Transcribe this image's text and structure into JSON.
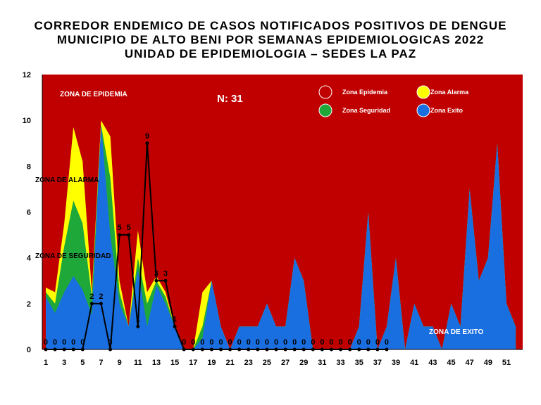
{
  "titles": [
    "CORREDOR ENDEMICO DE CASOS NOTIFICADOS POSITIVOS DE DENGUE",
    "MUNICIPIO DE ALTO BENI POR SEMANAS EPIDEMIOLOGICAS 2022",
    "UNIDAD DE EPIDEMIOLOGIA – SEDES LA PAZ"
  ],
  "annotations": {
    "n": "N: 31",
    "epidemia": "ZONA DE EPIDEMIA",
    "alarma": "ZONA DE ALARMA",
    "seguridad": "ZONA DE  SEGURIDAD",
    "exito": "ZONA DE  EXITO"
  },
  "colors": {
    "epidemia": "#c00000",
    "alarma": "#ffff00",
    "seguridad": "#1fa83a",
    "exito": "#1a6fe0",
    "casos": "#000000"
  },
  "chart_data": {
    "type": "area",
    "x": [
      1,
      2,
      3,
      4,
      5,
      6,
      7,
      8,
      9,
      10,
      11,
      12,
      13,
      14,
      15,
      16,
      17,
      18,
      19,
      20,
      21,
      22,
      23,
      24,
      25,
      26,
      27,
      28,
      29,
      30,
      31,
      32,
      33,
      34,
      35,
      36,
      37,
      38,
      39,
      40,
      41,
      42,
      43,
      44,
      45,
      46,
      47,
      48,
      49,
      50,
      51,
      52
    ],
    "xticks": [
      1,
      3,
      5,
      7,
      9,
      11,
      13,
      15,
      17,
      19,
      21,
      23,
      25,
      27,
      29,
      31,
      33,
      35,
      37,
      39,
      41,
      43,
      45,
      47,
      49,
      51
    ],
    "ylim": [
      0,
      12
    ],
    "yticks": [
      0,
      2,
      4,
      6,
      8,
      10,
      12
    ],
    "legend": [
      {
        "name": "Zona Epidemia",
        "color": "#c00000"
      },
      {
        "name": "Zona Alarma",
        "color": "#ffff00"
      },
      {
        "name": "Zona Seguridad",
        "color": "#1fa83a"
      },
      {
        "name": "Zona Exito",
        "color": "#1a6fe0"
      }
    ],
    "legend_position": "top-right",
    "zona_alarma": [
      2.7,
      2.5,
      5.5,
      9.7,
      8.2,
      2.5,
      10,
      9.3,
      3,
      1,
      5.2,
      2.5,
      3.2,
      2.5,
      1,
      0,
      0,
      2.5,
      3,
      1,
      0,
      1,
      1,
      1,
      2,
      1,
      1,
      4,
      3,
      0,
      0,
      0,
      0,
      0,
      1,
      6,
      0,
      1,
      4,
      0,
      2,
      1,
      1,
      0,
      2,
      1,
      7,
      3,
      4,
      9,
      2,
      1
    ],
    "zona_seguridad": [
      2.5,
      2,
      4.5,
      6.5,
      5.5,
      2.3,
      9.8,
      7.5,
      2.5,
      1,
      4,
      2,
      3,
      2.3,
      1,
      0,
      0,
      1,
      3,
      1,
      0,
      1,
      1,
      1,
      2,
      1,
      1,
      4,
      3,
      0,
      0,
      0,
      0,
      0,
      1,
      6,
      0,
      1,
      4,
      0,
      2,
      1,
      1,
      0,
      2,
      1,
      7,
      3,
      4,
      9,
      2,
      1
    ],
    "zona_exito": [
      2.3,
      1.6,
      2.5,
      3.2,
      2.6,
      1.5,
      9.8,
      5,
      2,
      1,
      3.5,
      1,
      2.8,
      2,
      1,
      0,
      0,
      0.5,
      3,
      1,
      0,
      1,
      1,
      1,
      2,
      1,
      1,
      4,
      3,
      0,
      0,
      0,
      0,
      0,
      1,
      6,
      0,
      1,
      4,
      0,
      2,
      1,
      1,
      0,
      2,
      1,
      7,
      3,
      4,
      9,
      2,
      1
    ],
    "casos": [
      0,
      0,
      0,
      0,
      0,
      2,
      2,
      0,
      5,
      5,
      1,
      9,
      3,
      3,
      1,
      0,
      0,
      0,
      0,
      0,
      0,
      0,
      0,
      0,
      0,
      0,
      0,
      0,
      0,
      0,
      0,
      0,
      0,
      0,
      0,
      0,
      0,
      0
    ],
    "casos_labels": [
      "0",
      "0",
      "0",
      "0",
      "0",
      "2",
      "2",
      "0",
      "5",
      "5",
      "1",
      "9",
      "3",
      "3",
      "1",
      "0",
      "0",
      "0",
      "0",
      "0",
      "0",
      "0",
      "0",
      "0",
      "0",
      "0",
      "0",
      "0",
      "0",
      "0",
      "0",
      "0",
      "0",
      "0",
      "0",
      "0",
      "0",
      "0"
    ]
  }
}
